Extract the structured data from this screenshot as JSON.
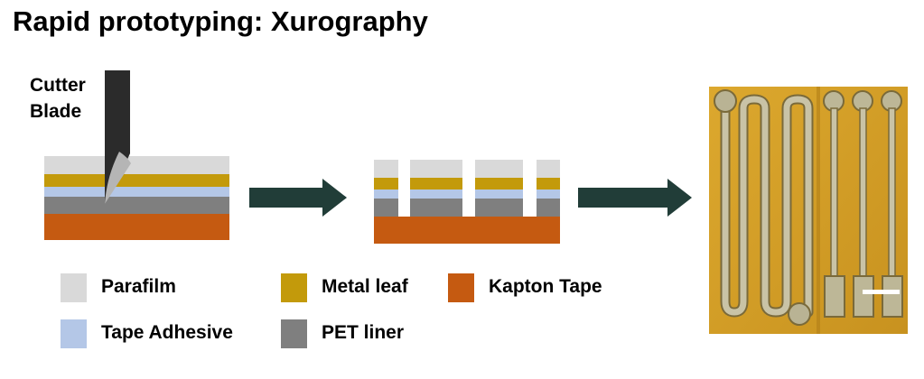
{
  "title": "Rapid prototyping: Xurography",
  "cutter_label": {
    "line1": "Cutter",
    "line2": "Blade"
  },
  "colors": {
    "parafilm": "#d9d9d9",
    "metal_leaf": "#c39a0b",
    "tape_adhesive": "#b4c7e7",
    "pet_liner": "#7f7f7f",
    "kapton_tape": "#c55a11",
    "arrow": "#213d38",
    "blade_body": "#2b2b2b",
    "blade_tip": "#b5b5b5",
    "photo_bg": "#d6a22a",
    "scale_bar": "#ffffff"
  },
  "legend": [
    {
      "key": "parafilm",
      "label": "Parafilm"
    },
    {
      "key": "metal_leaf",
      "label": "Metal leaf"
    },
    {
      "key": "kapton_tape",
      "label": "Kapton Tape"
    },
    {
      "key": "tape_adhesive",
      "label": "Tape Adhesive"
    },
    {
      "key": "pet_liner",
      "label": "PET liner"
    }
  ]
}
